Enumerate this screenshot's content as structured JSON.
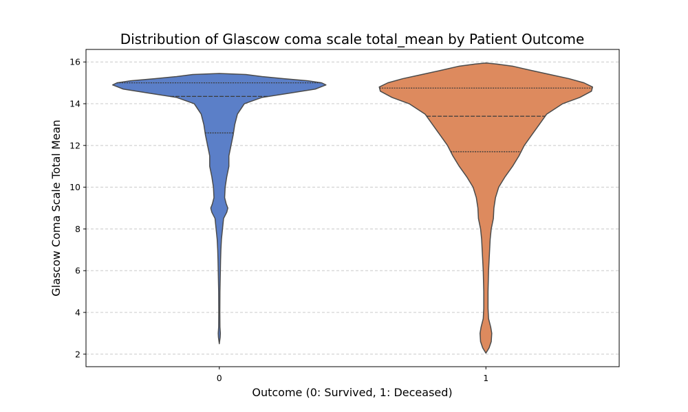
{
  "chart_data": {
    "type": "violin",
    "title": "Distribution of Glascow coma scale total_mean by Patient Outcome",
    "xlabel": "Outcome (0: Survived, 1: Deceased)",
    "ylabel": "Glascow Coma Scale Total Mean",
    "categories": [
      "0",
      "1"
    ],
    "ylim": [
      1.4,
      16.6
    ],
    "yticks": [
      2,
      4,
      6,
      8,
      10,
      12,
      14,
      16
    ],
    "ytick_labels": [
      "2",
      "4",
      "6",
      "8",
      "10",
      "12",
      "14",
      "16"
    ],
    "grid": {
      "y": true,
      "x": false,
      "style": "dashed"
    },
    "inner": "quartile",
    "series": [
      {
        "category": "0",
        "color": "#5b7fc8",
        "min": 2.5,
        "max": 15.45,
        "quartiles": [
          12.6,
          14.35,
          15.0
        ],
        "density": [
          [
            2.5,
            0.0
          ],
          [
            2.8,
            0.008
          ],
          [
            3.0,
            0.01
          ],
          [
            3.3,
            0.006
          ],
          [
            4.0,
            0.005
          ],
          [
            5.0,
            0.006
          ],
          [
            6.0,
            0.01
          ],
          [
            6.5,
            0.012
          ],
          [
            7.0,
            0.015
          ],
          [
            7.5,
            0.02
          ],
          [
            8.0,
            0.03
          ],
          [
            8.5,
            0.04
          ],
          [
            8.8,
            0.07
          ],
          [
            9.0,
            0.08
          ],
          [
            9.2,
            0.065
          ],
          [
            9.5,
            0.05
          ],
          [
            10.0,
            0.055
          ],
          [
            10.5,
            0.07
          ],
          [
            11.0,
            0.09
          ],
          [
            11.5,
            0.09
          ],
          [
            12.0,
            0.11
          ],
          [
            12.5,
            0.13
          ],
          [
            13.0,
            0.145
          ],
          [
            13.5,
            0.17
          ],
          [
            14.0,
            0.235
          ],
          [
            14.3,
            0.4
          ],
          [
            14.5,
            0.65
          ],
          [
            14.7,
            0.9
          ],
          [
            14.9,
            1.0
          ],
          [
            15.0,
            0.96
          ],
          [
            15.1,
            0.83
          ],
          [
            15.2,
            0.6
          ],
          [
            15.3,
            0.4
          ],
          [
            15.4,
            0.25
          ],
          [
            15.45,
            0.0
          ]
        ]
      },
      {
        "category": "1",
        "color": "#dd8a5e",
        "min": 2.05,
        "max": 15.95,
        "quartiles": [
          11.7,
          13.4,
          14.75
        ],
        "density": [
          [
            2.05,
            0.0
          ],
          [
            2.3,
            0.03
          ],
          [
            2.6,
            0.05
          ],
          [
            3.0,
            0.055
          ],
          [
            3.3,
            0.045
          ],
          [
            3.7,
            0.025
          ],
          [
            4.2,
            0.02
          ],
          [
            5.0,
            0.02
          ],
          [
            6.0,
            0.025
          ],
          [
            6.5,
            0.03
          ],
          [
            7.0,
            0.035
          ],
          [
            7.5,
            0.04
          ],
          [
            8.0,
            0.05
          ],
          [
            8.5,
            0.07
          ],
          [
            9.0,
            0.075
          ],
          [
            9.5,
            0.09
          ],
          [
            10.0,
            0.12
          ],
          [
            10.5,
            0.18
          ],
          [
            11.0,
            0.25
          ],
          [
            11.5,
            0.31
          ],
          [
            12.0,
            0.36
          ],
          [
            12.5,
            0.43
          ],
          [
            13.0,
            0.5
          ],
          [
            13.5,
            0.57
          ],
          [
            14.0,
            0.72
          ],
          [
            14.3,
            0.88
          ],
          [
            14.6,
            0.99
          ],
          [
            14.8,
            1.0
          ],
          [
            15.0,
            0.92
          ],
          [
            15.2,
            0.78
          ],
          [
            15.4,
            0.6
          ],
          [
            15.6,
            0.42
          ],
          [
            15.8,
            0.25
          ],
          [
            15.9,
            0.1
          ],
          [
            15.95,
            0.0
          ]
        ]
      }
    ]
  }
}
